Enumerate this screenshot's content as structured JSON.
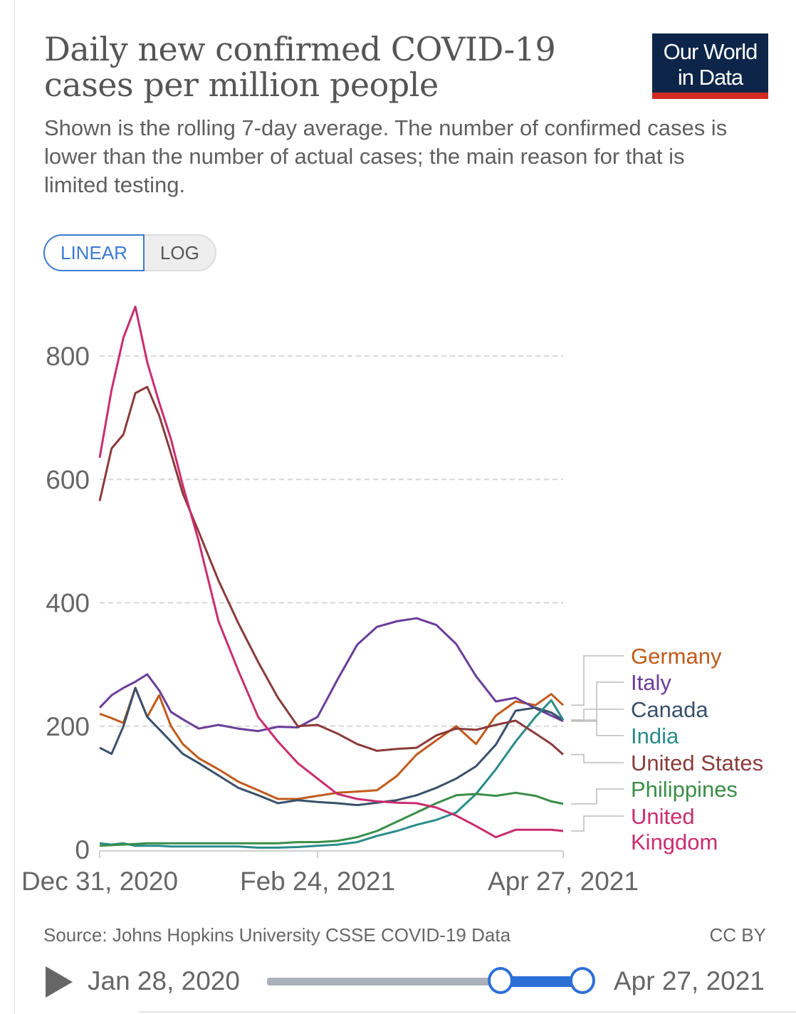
{
  "header": {
    "title": "Daily new confirmed COVID-19 cases per million people",
    "subtitle": "Shown is the rolling 7-day average. The number of confirmed cases is lower than the number of actual cases; the main reason for that is limited testing.",
    "logo_line1": "Our World",
    "logo_line2": "in Data"
  },
  "toggle": {
    "linear": "LINEAR",
    "log": "LOG",
    "selected": "LINEAR"
  },
  "footer": {
    "source": "Source: Johns Hopkins University CSSE COVID-19 Data",
    "license": "CC BY"
  },
  "timeline": {
    "start": "Jan 28, 2020",
    "end": "Apr 27, 2021"
  },
  "chart_data": {
    "type": "line",
    "title": "Daily new confirmed COVID-19 cases per million people",
    "xlabel": "",
    "ylabel": "",
    "x_unit": "days since Dec 31, 2020",
    "ylim": [
      0,
      800
    ],
    "yticks": [
      "0",
      "200",
      "400",
      "600",
      "800"
    ],
    "xticks": [
      {
        "day": 0,
        "label": "Dec 31, 2020"
      },
      {
        "day": 55,
        "label": "Feb 24, 2021"
      },
      {
        "day": 117,
        "label": "Apr 27, 2021"
      }
    ],
    "grid": "horizontal dashed",
    "legend": "right (line-end labels)",
    "x": [
      0,
      3,
      6,
      9,
      12,
      15,
      18,
      21,
      25,
      30,
      35,
      40,
      45,
      50,
      55,
      60,
      65,
      70,
      75,
      80,
      85,
      90,
      95,
      100,
      105,
      110,
      114,
      117
    ],
    "series": [
      {
        "name": "Germany",
        "color": "#c05a1b",
        "values": [
          220,
          213,
          205,
          262,
          215,
          250,
          200,
          171,
          148,
          130,
          110,
          96,
          82,
          82,
          87,
          92,
          94,
          96,
          119,
          154,
          177,
          200,
          171,
          217,
          240,
          234,
          252,
          234
        ]
      },
      {
        "name": "Italy",
        "color": "#6a3d9a",
        "values": [
          230,
          250,
          262,
          272,
          284,
          258,
          223,
          211,
          196,
          202,
          196,
          192,
          199,
          198,
          215,
          275,
          332,
          361,
          370,
          375,
          364,
          333,
          281,
          240,
          246,
          229,
          217,
          208
        ]
      },
      {
        "name": "Canada",
        "color": "#39506b",
        "values": [
          165,
          155,
          200,
          262,
          215,
          195,
          175,
          155,
          140,
          120,
          100,
          88,
          75,
          80,
          77,
          75,
          72,
          76,
          80,
          88,
          100,
          115,
          135,
          170,
          225,
          230,
          222,
          210
        ]
      },
      {
        "name": "India",
        "color": "#2a8c8a",
        "values": [
          10,
          8,
          10,
          6,
          6,
          6,
          5,
          5,
          5,
          5,
          5,
          3,
          3,
          4,
          6,
          8,
          12,
          22,
          30,
          40,
          48,
          60,
          90,
          130,
          175,
          215,
          242,
          210
        ]
      },
      {
        "name": "United States",
        "color": "#8b3a3a",
        "values": [
          565,
          650,
          673,
          740,
          750,
          704,
          642,
          577,
          515,
          436,
          367,
          304,
          246,
          200,
          202,
          188,
          171,
          160,
          163,
          165,
          185,
          196,
          194,
          202,
          209,
          188,
          171,
          154
        ]
      },
      {
        "name": "Philippines",
        "color": "#3a8d48",
        "values": [
          6,
          7,
          8,
          9,
          10,
          10,
          10,
          10,
          10,
          10,
          10,
          10,
          10,
          12,
          12,
          14,
          20,
          30,
          45,
          60,
          75,
          88,
          90,
          87,
          92,
          87,
          78,
          74
        ]
      },
      {
        "name": "United Kingdom",
        "color": "#c92d6f",
        "values": [
          635,
          745,
          830,
          880,
          790,
          725,
          665,
          590,
          500,
          370,
          290,
          215,
          175,
          140,
          115,
          90,
          82,
          78,
          76,
          75,
          68,
          55,
          38,
          20,
          32,
          32,
          32,
          30
        ]
      }
    ]
  }
}
